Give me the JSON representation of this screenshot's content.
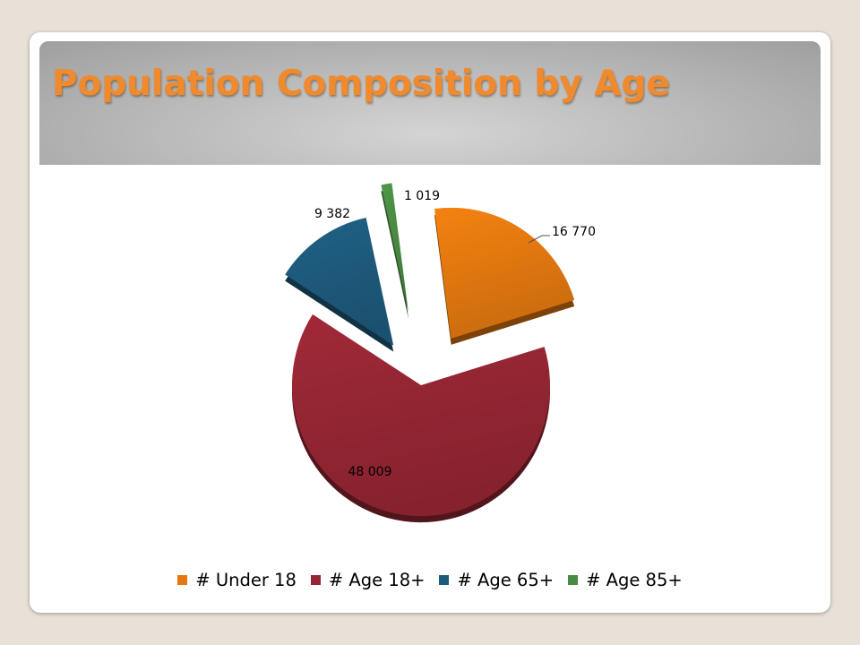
{
  "title": "Population Composition by Age",
  "chart_data": {
    "type": "pie",
    "style": "3d-exploded",
    "categories": [
      "# Under 18",
      "# Age 18+",
      "# Age 65+",
      "# Age 85+"
    ],
    "values": [
      16770,
      48009,
      9382,
      1019
    ],
    "data_labels": [
      "16 770",
      "48 009",
      "9 382",
      "1 019"
    ],
    "colors": [
      "#e2780f",
      "#952633",
      "#1e5a7c",
      "#4a8b43"
    ],
    "legend_position": "bottom"
  }
}
